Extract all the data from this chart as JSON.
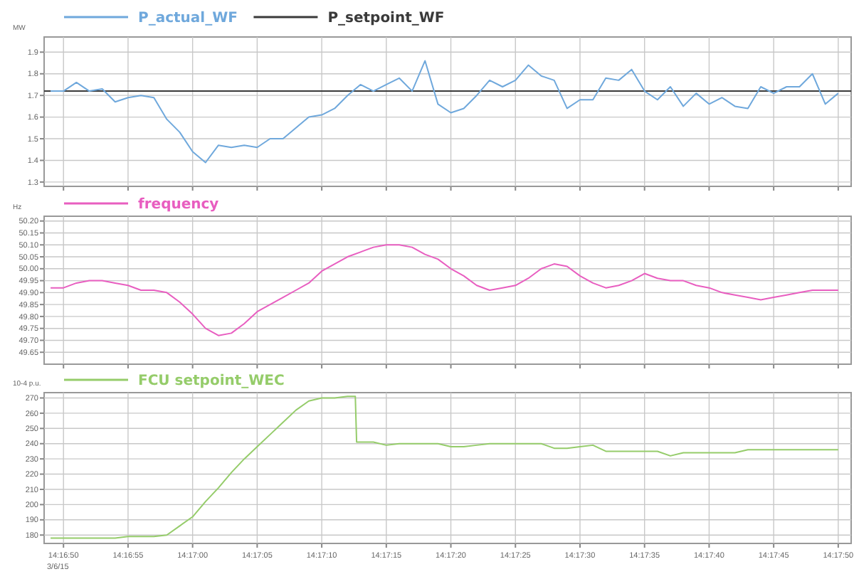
{
  "chart_data": [
    {
      "type": "line",
      "ylabel": "MW",
      "legend": "top left",
      "grid": true,
      "tick_labels": "y",
      "xlim": [
        51408.5,
        51471
      ],
      "ylim": [
        1.28,
        1.97
      ],
      "xticks": [
        {
          "value": 51410,
          "label": null
        },
        {
          "value": 51415,
          "label": null
        },
        {
          "value": 51420,
          "label": null
        },
        {
          "value": 51425,
          "label": null
        },
        {
          "value": 51430,
          "label": null
        },
        {
          "value": 51435,
          "label": null
        },
        {
          "value": 51440,
          "label": null
        },
        {
          "value": 51445,
          "label": null
        },
        {
          "value": 51450,
          "label": null
        },
        {
          "value": 51455,
          "label": null
        },
        {
          "value": 51460,
          "label": null
        },
        {
          "value": 51465,
          "label": null
        },
        {
          "value": 51470,
          "label": null
        }
      ],
      "yticks": [
        1.3,
        1.4,
        1.5,
        1.6,
        1.7,
        1.8,
        1.9
      ],
      "x": [
        51409,
        51410,
        51411,
        51412,
        51413,
        51414,
        51415,
        51416,
        51417,
        51418,
        51419,
        51420,
        51421,
        51422,
        51423,
        51424,
        51425,
        51426,
        51427,
        51428,
        51429,
        51430,
        51431,
        51432,
        51433,
        51434,
        51435,
        51436,
        51437,
        51438,
        51439,
        51440,
        51441,
        51442,
        51443,
        51444,
        51445,
        51446,
        51447,
        51448,
        51449,
        51450,
        51451,
        51452,
        51453,
        51454,
        51455,
        51456,
        51457,
        51458,
        51459,
        51460,
        51461,
        51462,
        51463,
        51464,
        51465,
        51466,
        51467,
        51468,
        51469,
        51470
      ],
      "series": [
        {
          "name": "P_actual_WF",
          "color": "#6fa8dc",
          "values": [
            1.72,
            1.72,
            1.76,
            1.72,
            1.73,
            1.67,
            1.69,
            1.7,
            1.69,
            1.59,
            1.53,
            1.44,
            1.39,
            1.47,
            1.46,
            1.47,
            1.46,
            1.5,
            1.5,
            1.55,
            1.6,
            1.61,
            1.64,
            1.7,
            1.75,
            1.72,
            1.75,
            1.78,
            1.72,
            1.86,
            1.66,
            1.62,
            1.64,
            1.7,
            1.77,
            1.74,
            1.77,
            1.84,
            1.79,
            1.77,
            1.64,
            1.68,
            1.68,
            1.78,
            1.77,
            1.82,
            1.72,
            1.68,
            1.74,
            1.65,
            1.71,
            1.66,
            1.69,
            1.65,
            1.64,
            1.74,
            1.71,
            1.74,
            1.74,
            1.8,
            1.66,
            1.71
          ]
        },
        {
          "name": "P_setpoint_WF",
          "color": "#3a3a3a",
          "x": [
            51408.5,
            51471
          ],
          "values": [
            1.72,
            1.72
          ]
        }
      ]
    },
    {
      "type": "line",
      "ylabel": "Hz",
      "legend": "top left",
      "grid": true,
      "tick_labels": "y",
      "xlim": [
        51408.5,
        51471
      ],
      "ylim": [
        49.6,
        50.22
      ],
      "xticks": [
        {
          "value": 51410,
          "label": null
        },
        {
          "value": 51415,
          "label": null
        },
        {
          "value": 51420,
          "label": null
        },
        {
          "value": 51425,
          "label": null
        },
        {
          "value": 51430,
          "label": null
        },
        {
          "value": 51435,
          "label": null
        },
        {
          "value": 51440,
          "label": null
        },
        {
          "value": 51445,
          "label": null
        },
        {
          "value": 51450,
          "label": null
        },
        {
          "value": 51455,
          "label": null
        },
        {
          "value": 51460,
          "label": null
        },
        {
          "value": 51465,
          "label": null
        },
        {
          "value": 51470,
          "label": null
        }
      ],
      "yticks": [
        {
          "value": 49.65,
          "label": "49.65"
        },
        {
          "value": 49.7,
          "label": "49.70"
        },
        {
          "value": 49.75,
          "label": "49.75"
        },
        {
          "value": 49.8,
          "label": "49.80"
        },
        {
          "value": 49.85,
          "label": "49.85"
        },
        {
          "value": 49.9,
          "label": "49.90"
        },
        {
          "value": 49.95,
          "label": "49.95"
        },
        {
          "value": 50,
          "label": "50.00"
        },
        {
          "value": 50.05,
          "label": "50.05"
        },
        {
          "value": 50.1,
          "label": "50.10"
        },
        {
          "value": 50.15,
          "label": "50.15"
        },
        {
          "value": 50.2,
          "label": "50.20"
        }
      ],
      "x": [
        51409,
        51410,
        51411,
        51412,
        51413,
        51414,
        51415,
        51416,
        51417,
        51418,
        51419,
        51420,
        51421,
        51422,
        51423,
        51424,
        51425,
        51426,
        51427,
        51428,
        51429,
        51430,
        51431,
        51432,
        51433,
        51434,
        51435,
        51436,
        51437,
        51438,
        51439,
        51440,
        51441,
        51442,
        51443,
        51444,
        51445,
        51446,
        51447,
        51448,
        51449,
        51450,
        51451,
        51452,
        51453,
        51454,
        51455,
        51456,
        51457,
        51458,
        51459,
        51460,
        51461,
        51462,
        51463,
        51464,
        51465,
        51466,
        51467,
        51468,
        51469,
        51470
      ],
      "series": [
        {
          "name": "frequency",
          "color": "#e85ec0",
          "values": [
            49.92,
            49.92,
            49.94,
            49.95,
            49.95,
            49.94,
            49.93,
            49.91,
            49.91,
            49.9,
            49.86,
            49.81,
            49.75,
            49.72,
            49.73,
            49.77,
            49.82,
            49.85,
            49.88,
            49.91,
            49.94,
            49.99,
            50.02,
            50.05,
            50.07,
            50.09,
            50.1,
            50.1,
            50.09,
            50.06,
            50.04,
            50.0,
            49.97,
            49.93,
            49.91,
            49.92,
            49.93,
            49.96,
            50.0,
            50.02,
            50.01,
            49.97,
            49.94,
            49.92,
            49.93,
            49.95,
            49.98,
            49.96,
            49.95,
            49.95,
            49.93,
            49.92,
            49.9,
            49.89,
            49.88,
            49.87,
            49.88,
            49.89,
            49.9,
            49.91,
            49.91,
            49.91
          ]
        }
      ]
    },
    {
      "type": "line",
      "ylabel": "10-4 p.u.",
      "legend": "top left",
      "grid": true,
      "xlim": [
        51408.5,
        51471
      ],
      "ylim": [
        174.5,
        273.5
      ],
      "xticks": [
        {
          "value": 51410,
          "label": "14:16:50"
        },
        {
          "value": 51415,
          "label": "14:16:55"
        },
        {
          "value": 51420,
          "label": "14:17:00"
        },
        {
          "value": 51425,
          "label": "14:17:05"
        },
        {
          "value": 51430,
          "label": "14:17:10"
        },
        {
          "value": 51435,
          "label": "14:17:15"
        },
        {
          "value": 51440,
          "label": "14:17:20"
        },
        {
          "value": 51445,
          "label": "14:17:25"
        },
        {
          "value": 51450,
          "label": "14:17:30"
        },
        {
          "value": 51455,
          "label": "14:17:35"
        },
        {
          "value": 51460,
          "label": "14:17:40"
        },
        {
          "value": 51465,
          "label": "14:17:45"
        },
        {
          "value": 51470,
          "label": "14:17:50"
        }
      ],
      "yticks": [
        180,
        190,
        200,
        210,
        220,
        230,
        240,
        250,
        260,
        270
      ],
      "annotations": [
        "3/6/15"
      ],
      "series": [
        {
          "name": "FCU setpoint_WEC",
          "color": "#95cc6a",
          "x": [
            51409,
            51410,
            51411,
            51412,
            51413,
            51414,
            51415,
            51416,
            51417,
            51418,
            51419,
            51420,
            51421,
            51422,
            51423,
            51424,
            51425,
            51426,
            51427,
            51428,
            51429,
            51430,
            51431,
            51432,
            51432.6,
            51432.7,
            51433,
            51434,
            51435,
            51436,
            51437,
            51438,
            51439,
            51440,
            51441,
            51442,
            51443,
            51444,
            51445,
            51446,
            51447,
            51448,
            51449,
            51450,
            51451,
            51452,
            51453,
            51454,
            51455,
            51456,
            51457,
            51458,
            51459,
            51460,
            51461,
            51462,
            51463,
            51464,
            51465,
            51466,
            51467,
            51468,
            51469,
            51470
          ],
          "values": [
            178,
            178,
            178,
            178,
            178,
            178,
            179,
            179,
            179,
            180,
            186,
            192,
            202,
            211,
            221,
            230,
            238,
            246,
            254,
            262,
            268,
            270,
            270,
            271,
            271,
            241,
            241,
            241,
            239,
            240,
            240,
            240,
            240,
            238,
            238,
            239,
            240,
            240,
            240,
            240,
            240,
            237,
            237,
            238,
            239,
            235,
            235,
            235,
            235,
            235,
            232,
            234,
            234,
            234,
            234,
            234,
            236,
            236,
            236,
            236,
            236,
            236,
            236,
            236
          ]
        }
      ]
    }
  ]
}
